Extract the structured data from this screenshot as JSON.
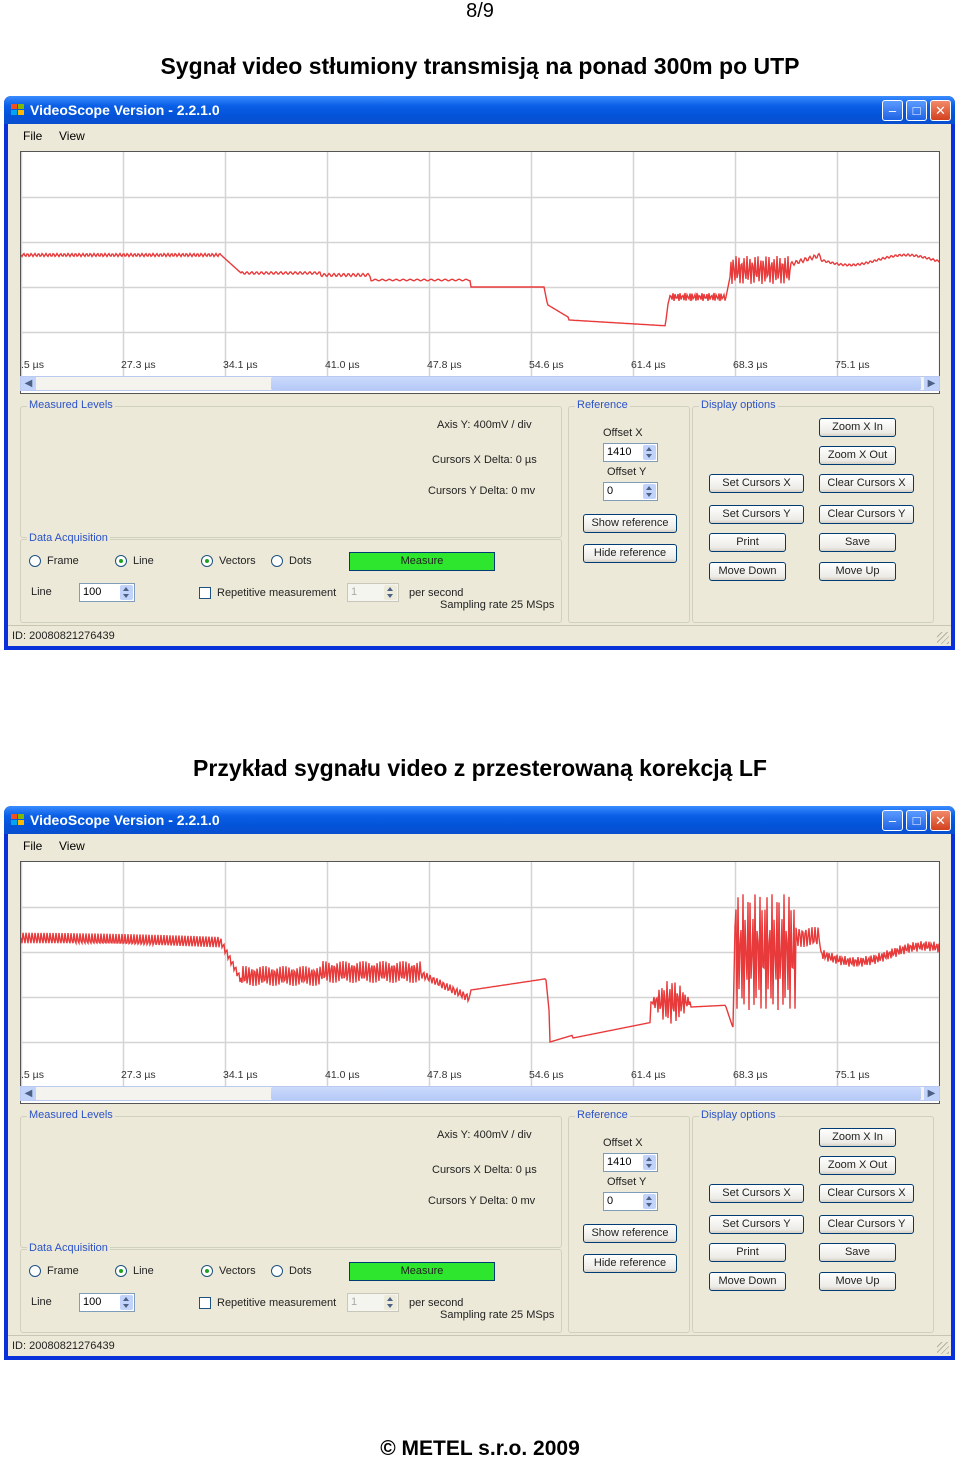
{
  "page_number": "8/9",
  "footer": "© METEL s.r.o. 2009",
  "windows": [
    {
      "caption": "Sygnał video stłumiony transmisją na ponad 300m po UTP",
      "title": "VideoScope Version - 2.2.1.0",
      "menu": [
        "File",
        "View"
      ],
      "waveform_color": "#e83a3a",
      "xticks": [
        ".5 µs",
        "27.3 µs",
        "34.1 µs",
        "41.0 µs",
        "47.8 µs",
        "54.6 µs",
        "61.4 µs",
        "68.3 µs",
        "75.1 µs"
      ],
      "measured_levels": {
        "title": "Measured Levels",
        "axis_y": "Axis Y: 400mV / div",
        "cursors_x": "Cursors X Delta: 0 µs",
        "cursors_y": "Cursors Y Delta: 0 mv"
      },
      "data_acquisition": {
        "title": "Data Acquisition",
        "frame": "Frame",
        "line": "Line",
        "vectors": "Vectors",
        "dots": "Dots",
        "measure": "Measure",
        "line_label": "Line",
        "line_value": "100",
        "repetitive": "Repetitive measurement",
        "rep_value": "1",
        "per_second": "per second",
        "sampling": "Sampling rate 25 MSps"
      },
      "reference": {
        "title": "Reference",
        "offset_x_label": "Offset X",
        "offset_x": "1410",
        "offset_y_label": "Offset Y",
        "offset_y": "0",
        "show": "Show reference",
        "hide": "Hide reference"
      },
      "display_options": {
        "title": "Display options",
        "zoom_in": "Zoom X In",
        "zoom_out": "Zoom X Out",
        "set_x": "Set Cursors X",
        "clear_x": "Clear Cursors X",
        "set_y": "Set Cursors Y",
        "clear_y": "Clear Cursors Y",
        "print": "Print",
        "save": "Save",
        "move_down": "Move Down",
        "move_up": "Move Up"
      },
      "status_id": "ID: 20080821276439"
    },
    {
      "caption": "Przykład sygnału video z przesterowaną korekcją LF",
      "title": "VideoScope Version - 2.2.1.0",
      "menu": [
        "File",
        "View"
      ],
      "waveform_color": "#e83a3a",
      "xticks": [
        ".5 µs",
        "27.3 µs",
        "34.1 µs",
        "41.0 µs",
        "47.8 µs",
        "54.6 µs",
        "61.4 µs",
        "68.3 µs",
        "75.1 µs"
      ],
      "measured_levels": {
        "title": "Measured Levels",
        "axis_y": "Axis Y: 400mV / div",
        "cursors_x": "Cursors X Delta: 0 µs",
        "cursors_y": "Cursors Y Delta: 0 mv"
      },
      "data_acquisition": {
        "title": "Data Acquisition",
        "frame": "Frame",
        "line": "Line",
        "vectors": "Vectors",
        "dots": "Dots",
        "measure": "Measure",
        "line_label": "Line",
        "line_value": "100",
        "repetitive": "Repetitive measurement",
        "rep_value": "1",
        "per_second": "per second",
        "sampling": "Sampling rate 25 MSps"
      },
      "reference": {
        "title": "Reference",
        "offset_x_label": "Offset X",
        "offset_x": "1410",
        "offset_y_label": "Offset Y",
        "offset_y": "0",
        "show": "Show reference",
        "hide": "Hide reference"
      },
      "display_options": {
        "title": "Display options",
        "zoom_in": "Zoom X In",
        "zoom_out": "Zoom X Out",
        "set_x": "Set Cursors X",
        "clear_x": "Clear Cursors X",
        "set_y": "Set Cursors Y",
        "clear_y": "Clear Cursors Y",
        "print": "Print",
        "save": "Save",
        "move_down": "Move Down",
        "move_up": "Move Up"
      },
      "status_id": "ID: 20080821276439"
    }
  ]
}
